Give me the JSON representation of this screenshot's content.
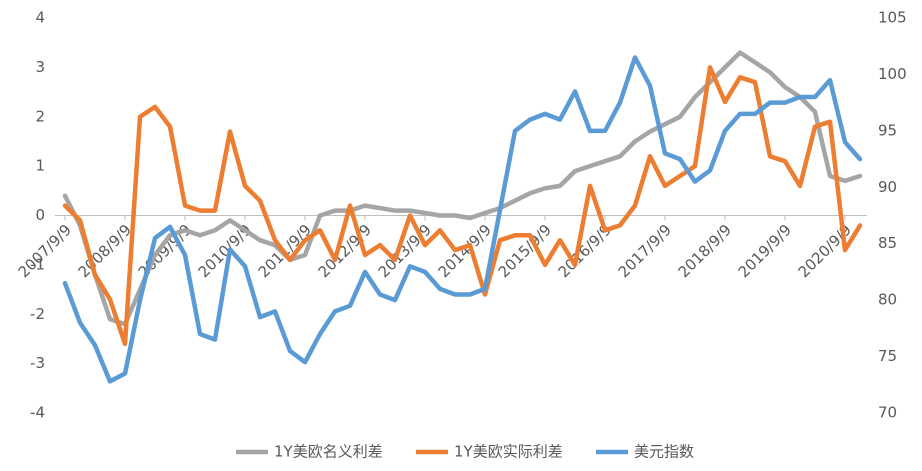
{
  "chart_data": {
    "type": "line",
    "categories": [
      "2007/9/9",
      null,
      null,
      null,
      "2008/9/9",
      null,
      null,
      null,
      "2009/9/9",
      null,
      null,
      null,
      "2010/9/9",
      null,
      null,
      null,
      "2011/9/9",
      null,
      null,
      null,
      "2012/9/9",
      null,
      null,
      null,
      "2013/9/9",
      null,
      null,
      null,
      "2014/9/9",
      null,
      null,
      null,
      "2015/9/9",
      null,
      null,
      null,
      "2016/9/9",
      null,
      null,
      null,
      "2017/9/9",
      null,
      null,
      null,
      "2018/9/9",
      null,
      null,
      null,
      "2019/9/9",
      null,
      null,
      null,
      "2020/9/9",
      null
    ],
    "series": [
      {
        "name": "1Y美欧名义利差",
        "color": "#a5a5a5",
        "values": [
          0.4,
          -0.2,
          -1.2,
          -2.1,
          -2.2,
          -1.5,
          -0.8,
          -0.4,
          -0.3,
          -0.4,
          -0.3,
          -0.1,
          -0.3,
          -0.5,
          -0.6,
          -0.9,
          -0.8,
          0.0,
          0.1,
          0.1,
          0.2,
          0.15,
          0.1,
          0.1,
          0.05,
          0.0,
          0.0,
          -0.05,
          0.05,
          0.15,
          0.3,
          0.45,
          0.55,
          0.6,
          0.9,
          1.0,
          1.1,
          1.2,
          1.5,
          1.7,
          1.85,
          2.0,
          2.4,
          2.7,
          3.0,
          3.3,
          3.1,
          2.9,
          2.6,
          2.4,
          2.1,
          0.8,
          0.7,
          0.8
        ]
      },
      {
        "name": "1Y美欧实际利差",
        "color": "#ed7d31",
        "values": [
          0.2,
          -0.1,
          -1.2,
          -1.7,
          -2.6,
          2.0,
          2.2,
          1.8,
          0.2,
          0.1,
          0.1,
          1.7,
          0.6,
          0.3,
          -0.5,
          -0.9,
          -0.5,
          -0.3,
          -0.9,
          0.2,
          -0.8,
          -0.6,
          -0.9,
          0.0,
          -0.6,
          -0.3,
          -0.7,
          -0.6,
          -1.6,
          -0.5,
          -0.4,
          -0.4,
          -1.0,
          -0.5,
          -1.0,
          0.6,
          -0.3,
          -0.2,
          0.2,
          1.2,
          0.6,
          0.8,
          1.0,
          3.0,
          2.3,
          2.8,
          2.7,
          1.2,
          1.1,
          0.6,
          1.8,
          1.9,
          -0.7,
          -0.2
        ]
      },
      {
        "name": "美元指数",
        "color": "#5b9bd5",
        "axis": "y2",
        "values": [
          81.5,
          78,
          76,
          72.8,
          73.5,
          80,
          85.5,
          86.5,
          84,
          77,
          76.5,
          84.5,
          83,
          78.5,
          79,
          75.5,
          74.5,
          77,
          79,
          79.5,
          82.5,
          80.5,
          80,
          83,
          82.5,
          81,
          80.5,
          80.5,
          81,
          88,
          95,
          96,
          96.5,
          96,
          98.5,
          95,
          95,
          97.5,
          101.5,
          99,
          93,
          92.5,
          90.5,
          91.5,
          95,
          96.5,
          96.5,
          97.5,
          97.5,
          98,
          98,
          99.5,
          94,
          92.5
        ]
      }
    ],
    "ylim": [
      -4,
      4
    ],
    "yticks": [
      -4,
      -3,
      -2,
      -1,
      0,
      1,
      2,
      3,
      4
    ],
    "y2lim": [
      70,
      105
    ],
    "y2ticks": [
      70,
      75,
      80,
      85,
      90,
      95,
      100,
      105
    ],
    "legend": "bottom"
  }
}
